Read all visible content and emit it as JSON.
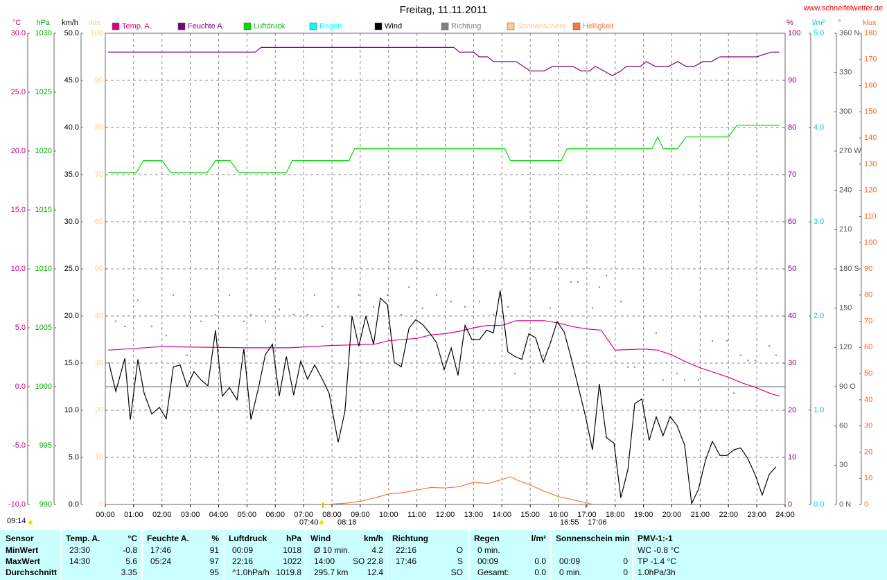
{
  "chart_data": {
    "type": "line",
    "title": "Freitag, 11.11.2011",
    "source": "www.schneifelwetter.de",
    "grid": true,
    "xlim": [
      0,
      24
    ],
    "xticks": [
      {
        "value": 0,
        "label": "00:00"
      },
      {
        "value": 1,
        "label": "01:00"
      },
      {
        "value": 2,
        "label": "02:00"
      },
      {
        "value": 3,
        "label": "03:00"
      },
      {
        "value": 4,
        "label": "04:00"
      },
      {
        "value": 5,
        "label": "05:00"
      },
      {
        "value": 6,
        "label": "06:00"
      },
      {
        "value": 7,
        "label": "07:00"
      },
      {
        "value": 8,
        "label": "08:00"
      },
      {
        "value": 9,
        "label": "09:00"
      },
      {
        "value": 10,
        "label": "10:00"
      },
      {
        "value": 11,
        "label": "11:00"
      },
      {
        "value": 12,
        "label": "12:00"
      },
      {
        "value": 13,
        "label": "13:00"
      },
      {
        "value": 14,
        "label": "14:00"
      },
      {
        "value": 15,
        "label": "15:00"
      },
      {
        "value": 16,
        "label": "16:00"
      },
      {
        "value": 17,
        "label": "17:00"
      },
      {
        "value": 18,
        "label": "18:00"
      },
      {
        "value": 19,
        "label": "19:00"
      },
      {
        "value": 20,
        "label": "20:00"
      },
      {
        "value": 21,
        "label": "21:00"
      },
      {
        "value": 22,
        "label": "22:00"
      },
      {
        "value": 23,
        "label": "23:00"
      },
      {
        "value": 24,
        "label": "24:00"
      }
    ],
    "axes": [
      {
        "label": "°C",
        "side": "left",
        "color": "#cc0077",
        "ylim": [
          -10,
          30
        ],
        "yticks": [
          {
            "value": -10,
            "label": "-10.0"
          },
          {
            "value": -5,
            "label": "-5.0"
          },
          {
            "value": 0,
            "label": "0.0"
          },
          {
            "value": 5,
            "label": "5.0"
          },
          {
            "value": 10,
            "label": "10.0"
          },
          {
            "value": 15,
            "label": "15.0"
          },
          {
            "value": 20,
            "label": "20.0"
          },
          {
            "value": 25,
            "label": "25.0"
          },
          {
            "value": 30,
            "label": "30.0"
          }
        ]
      },
      {
        "label": "hPa",
        "side": "left",
        "color": "#00aa00",
        "ylim": [
          990,
          1030
        ],
        "yticks": [
          990,
          995,
          1000,
          1005,
          1010,
          1015,
          1020,
          1025,
          1030
        ]
      },
      {
        "label": "km/h",
        "side": "left",
        "color": "#000000",
        "ylim": [
          0,
          50
        ],
        "yticks": [
          {
            "value": 0,
            "label": "0.0"
          },
          {
            "value": 5,
            "label": "5.0"
          },
          {
            "value": 10,
            "label": "10.0"
          },
          {
            "value": 15,
            "label": "15.0"
          },
          {
            "value": 20,
            "label": "20.0"
          },
          {
            "value": 25,
            "label": "25.0"
          },
          {
            "value": 30,
            "label": "30.0"
          },
          {
            "value": 35,
            "label": "35.0"
          },
          {
            "value": 40,
            "label": "40.0"
          },
          {
            "value": 45,
            "label": "45.0"
          },
          {
            "value": 50,
            "label": "50.0"
          }
        ]
      },
      {
        "label": "min",
        "side": "left",
        "color": "#ffcc88",
        "ylim": [
          0,
          100
        ],
        "yticks": [
          0,
          10,
          20,
          30,
          40,
          50,
          60,
          70,
          80,
          90,
          100
        ]
      },
      {
        "label": "%",
        "side": "right",
        "color": "#800080",
        "ylim": [
          0,
          100
        ],
        "yticks": [
          0,
          10,
          20,
          30,
          40,
          50,
          60,
          70,
          80,
          90,
          100
        ]
      },
      {
        "label": "l/m²",
        "side": "right",
        "color": "#00cccc",
        "ylim": [
          0,
          5
        ],
        "yticks": [
          {
            "value": 0,
            "label": "0.0"
          },
          {
            "value": 1,
            "label": "1.0"
          },
          {
            "value": 2,
            "label": "2.0"
          },
          {
            "value": 3,
            "label": "3.0"
          },
          {
            "value": 4,
            "label": "4.0"
          },
          {
            "value": 5,
            "label": "5.0"
          }
        ]
      },
      {
        "label": "°",
        "side": "right",
        "color": "#555555",
        "ylim": [
          0,
          360
        ],
        "yticks": [
          {
            "value": 0,
            "label": "0 N"
          },
          30,
          60,
          {
            "value": 90,
            "label": "90 O"
          },
          120,
          150,
          {
            "value": 180,
            "label": "180 S"
          },
          210,
          240,
          {
            "value": 270,
            "label": "270 W"
          },
          300,
          330,
          {
            "value": 360,
            "label": "360 N"
          }
        ]
      },
      {
        "label": "klux",
        "side": "right",
        "color": "#ff6622",
        "ylim": [
          0,
          180
        ],
        "yticks": [
          0,
          10,
          20,
          30,
          40,
          50,
          60,
          70,
          80,
          90,
          100,
          110,
          120,
          130,
          140,
          150,
          160,
          170,
          180
        ]
      }
    ],
    "series": [
      {
        "name": "Temp. A.",
        "color": "#e0007f",
        "axis": 0,
        "x": [
          0.1,
          2,
          5,
          6.5,
          8,
          9.5,
          10,
          11,
          11.5,
          12,
          12.5,
          13,
          13.5,
          14,
          14.5,
          15.5,
          16,
          16.5,
          17,
          17.5,
          18,
          19,
          19.5,
          20,
          20.5,
          21,
          21.5,
          22,
          22.5,
          23,
          23.5,
          23.8
        ],
        "values": [
          3.1,
          3.4,
          3.3,
          3.3,
          3.5,
          3.6,
          3.9,
          4.1,
          4.4,
          4.5,
          4.7,
          5.0,
          5.2,
          5.2,
          5.6,
          5.6,
          5.4,
          5.1,
          4.9,
          4.8,
          3.1,
          3.2,
          3.1,
          2.7,
          2.1,
          1.6,
          1.2,
          0.8,
          0.3,
          -0.1,
          -0.6,
          -0.8
        ]
      },
      {
        "name": "Feuchte A.",
        "color": "#800080",
        "axis": 4,
        "x": [
          0.1,
          5.3,
          5.5,
          12.3,
          12.5,
          13,
          13.2,
          13.5,
          13.7,
          14.5,
          15,
          15.5,
          15.8,
          16.5,
          16.8,
          17.1,
          17.3,
          17.6,
          17.9,
          18.2,
          18.4,
          18.9,
          19.1,
          19.4,
          19.9,
          20.2,
          20.5,
          20.8,
          21.1,
          21.4,
          21.7,
          23,
          23.5,
          23.8
        ],
        "values": [
          96,
          96,
          97,
          97,
          96,
          96,
          95,
          95,
          94,
          94,
          92,
          92,
          93,
          93,
          92,
          92,
          93,
          92,
          91,
          92,
          93,
          93,
          94,
          93,
          93,
          94,
          93,
          93,
          94,
          94,
          95,
          95,
          96,
          96
        ]
      },
      {
        "name": "Luftdruck",
        "color": "#00dd00",
        "axis": 1,
        "x": [
          0.1,
          1.1,
          1.35,
          2.0,
          2.3,
          3.6,
          3.9,
          4.4,
          4.7,
          6.4,
          6.6,
          8.6,
          8.8,
          14.1,
          14.3,
          16.1,
          16.3,
          19.3,
          19.5,
          19.7,
          20.2,
          20.5,
          22.0,
          22.3,
          23.8
        ],
        "values": [
          1018.2,
          1018.2,
          1019.2,
          1019.2,
          1018.2,
          1018.2,
          1019.2,
          1019.2,
          1018.2,
          1018.2,
          1019.2,
          1019.2,
          1020.2,
          1020.2,
          1019.2,
          1019.2,
          1020.2,
          1020.2,
          1021.2,
          1020.2,
          1020.2,
          1021.2,
          1021.2,
          1022.2,
          1022.2
        ]
      },
      {
        "name": "Regen",
        "color": "#00ffff",
        "axis": 5
      },
      {
        "name": "Wind",
        "color": "#000000",
        "axis": 2,
        "x": [
          0.12,
          0.37,
          0.69,
          0.88,
          1.15,
          1.37,
          1.64,
          1.91,
          2.15,
          2.4,
          2.64,
          2.89,
          3.13,
          3.38,
          3.62,
          3.89,
          4.13,
          4.38,
          4.65,
          4.89,
          5.14,
          5.41,
          5.65,
          5.9,
          6.14,
          6.39,
          6.65,
          6.9,
          7.14,
          7.39,
          7.66,
          7.9,
          8.22,
          8.46,
          8.71,
          8.95,
          9.2,
          9.47,
          9.71,
          9.96,
          10.2,
          10.45,
          10.72,
          10.96,
          11.2,
          11.45,
          11.69,
          11.96,
          12.21,
          12.45,
          12.7,
          12.94,
          13.21,
          13.46,
          13.7,
          13.94,
          14.21,
          14.46,
          14.7,
          14.95,
          15.19,
          15.46,
          15.71,
          15.95,
          16.2,
          16.44,
          16.68,
          16.95,
          17.2,
          17.44,
          17.69,
          17.96,
          18.2,
          18.45,
          18.69,
          18.94,
          19.2,
          19.45,
          19.69,
          19.94,
          20.18,
          20.45,
          20.7,
          20.94,
          21.19,
          21.43,
          21.7,
          21.94,
          22.19,
          22.43,
          22.68,
          22.95,
          23.19,
          23.44,
          23.68
        ],
        "values": [
          15.1,
          12.0,
          15.5,
          9.0,
          15.4,
          11.8,
          9.6,
          10.3,
          9.1,
          14.6,
          14.8,
          12.5,
          14.1,
          13.2,
          12.6,
          18.5,
          11.5,
          12.4,
          11.1,
          16.5,
          9.0,
          12.4,
          15.9,
          17.0,
          11.5,
          15.7,
          11.6,
          15.2,
          13.3,
          14.8,
          13.3,
          11.8,
          6.6,
          9.9,
          20.0,
          16.8,
          20.0,
          17.0,
          21.9,
          21.2,
          15.1,
          14.6,
          18.7,
          19.6,
          19.1,
          18.2,
          17.2,
          14.3,
          16.6,
          13.7,
          19.0,
          17.5,
          17.5,
          18.5,
          18.2,
          22.7,
          16.2,
          15.7,
          15.4,
          18.1,
          17.7,
          15.1,
          17.1,
          19.4,
          18.3,
          15.6,
          12.7,
          9.4,
          5.8,
          12.8,
          7.1,
          6.5,
          0.7,
          3.7,
          10.7,
          11.2,
          6.8,
          9.3,
          7.3,
          9.3,
          8.4,
          6.3,
          0.1,
          1.6,
          4.7,
          6.7,
          5.2,
          5.2,
          5.8,
          6.0,
          4.9,
          3.1,
          1.0,
          3.2,
          4.0
        ]
      },
      {
        "name": "Richtung",
        "color": "#808080",
        "axis": 6,
        "marker": "dots",
        "x": [
          0.37,
          0.69,
          1.15,
          1.64,
          2.15,
          2.4,
          2.89,
          3.38,
          3.89,
          4.38,
          4.89,
          5.14,
          5.65,
          6.14,
          6.65,
          7.14,
          7.39,
          7.66,
          8.22,
          8.95,
          9.47,
          9.96,
          10.45,
          10.72,
          11.2,
          11.69,
          12.21,
          12.7,
          13.21,
          13.7,
          14.21,
          14.46,
          14.95,
          15.46,
          15.71,
          16.44,
          16.68,
          17.2,
          17.44,
          17.69,
          18.2,
          18.45,
          18.69,
          19.45,
          19.69,
          20.18,
          20.45,
          20.94,
          21.43,
          21.94,
          22.19,
          22.43,
          22.68,
          22.95,
          23.44,
          23.68
        ],
        "values": [
          140,
          136,
          156,
          136,
          129,
          160,
          114,
          140,
          145,
          160,
          140,
          145,
          140,
          149,
          145,
          145,
          160,
          136,
          151,
          160,
          151,
          160,
          145,
          166,
          150,
          160,
          155,
          151,
          155,
          145,
          151,
          100,
          129,
          114,
          150,
          170,
          170,
          150,
          166,
          175,
          155,
          105,
          105,
          131,
          95,
          100,
          95,
          95,
          125,
          125,
          85,
          114,
          110,
          110,
          121,
          114
        ]
      },
      {
        "name": "Sonnenschein",
        "color": "#ffcc88",
        "axis": 3
      },
      {
        "name": "Helligkeit",
        "color": "#ff7733",
        "axis": 7,
        "x": [
          7.8,
          8.5,
          9,
          9.5,
          10,
          10.5,
          11,
          11.5,
          12,
          12.5,
          13,
          13.5,
          14,
          14.3,
          14.6,
          15,
          15.5,
          16,
          16.5,
          17,
          17.2
        ],
        "values": [
          0,
          0.5,
          1.2,
          2.5,
          4,
          4.5,
          5.5,
          6.5,
          6.3,
          6.8,
          8.5,
          8,
          9.5,
          10.6,
          9,
          7.5,
          5,
          3,
          1.8,
          0.6,
          0
        ]
      }
    ],
    "annotations": [
      "07:40",
      "08:18",
      "16:55",
      "17:06",
      "09:14"
    ],
    "table": {
      "rows": [
        [
          "Sensor",
          "Temp. A.",
          "°C",
          "Feuchte A.",
          "%",
          "Luftdruck",
          "hPa",
          "Wind",
          "km/h",
          "Richtung",
          null,
          "Regen",
          "l/m²",
          "Sonnenschein min",
          null,
          "PMV-1:-1"
        ],
        [
          "MinWert",
          "23:30",
          "-0.8",
          "17:46",
          "91",
          "00:09",
          "1018",
          "Ø 10 min.",
          "4.2",
          "22:16",
          "O",
          "0 min.",
          null,
          null,
          null,
          "WC -0.8 °C"
        ],
        [
          "MaxWert",
          "14:30",
          "5.6",
          "05:24",
          "97",
          "22:16",
          "1022",
          "14:00",
          "SO 22.8",
          "17:46",
          "S",
          "00:09",
          "0.0",
          "00:09",
          "0",
          "TP -1.4 °C"
        ],
        [
          "Durchschnitt",
          null,
          "3.35",
          null,
          "95",
          "^1.0hPa/h",
          "1019.8",
          "295.7 km",
          "12.4",
          null,
          "SO",
          "Gesamt:",
          "0.0",
          "0 min.",
          "0",
          "1.0hPa/3h"
        ]
      ]
    }
  }
}
